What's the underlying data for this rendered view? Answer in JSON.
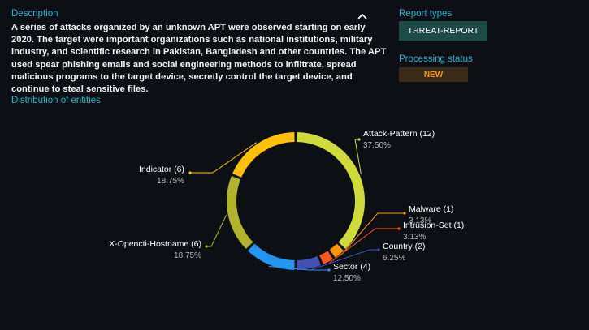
{
  "description": {
    "title": "Description",
    "text": "A series of attacks organized by an unknown APT were observed starting on early 2020. The target were important organizations such as national institutions, military industry, and scientific research in Pakistan, Bangladesh and other countries. The APT used spear phishing emails and social engineering methods to infiltrate, spread malicious programs to the target device, secretly control the target device, and continue to steal sensitive files."
  },
  "report_types": {
    "title": "Report types",
    "value": "THREAT-REPORT"
  },
  "processing_status": {
    "title": "Processing status",
    "value": "NEW"
  },
  "distribution": {
    "title": "Distribution of entities"
  },
  "chart_data": {
    "type": "pie",
    "variant": "donut",
    "slices": [
      {
        "label": "Attack-Pattern (12)",
        "percent": "37.50%",
        "value": 12,
        "color": "#cddc39"
      },
      {
        "label": "Malware (1)",
        "percent": "3.13%",
        "value": 1,
        "color": "#ff9800"
      },
      {
        "label": "Intrusion-Set (1)",
        "percent": "3.13%",
        "value": 1,
        "color": "#ff5722"
      },
      {
        "label": "Country (2)",
        "percent": "6.25%",
        "value": 2,
        "color": "#3f51b5"
      },
      {
        "label": "Sector (4)",
        "percent": "12.50%",
        "value": 4,
        "color": "#2196f3"
      },
      {
        "label": "X-Opencti-Hostname (6)",
        "percent": "18.75%",
        "value": 6,
        "color": "#afb42b"
      },
      {
        "label": "Indicator (6)",
        "percent": "18.75%",
        "value": 6,
        "color": "#ffc107"
      }
    ]
  }
}
